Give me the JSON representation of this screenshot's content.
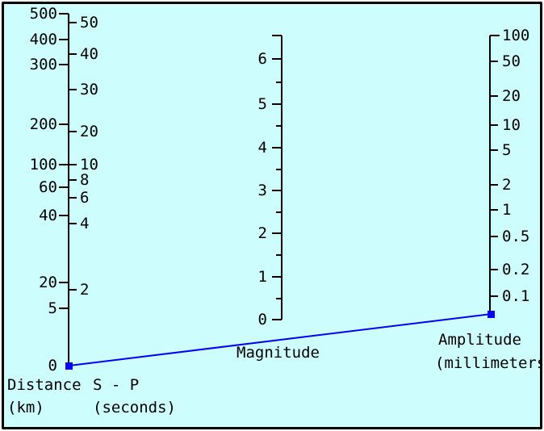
{
  "colors": {
    "background": "#cdfdfd",
    "axis": "#000000",
    "connector": "#0000ff"
  },
  "distance_axis": {
    "label_line1": "Distance",
    "label_line2": "(km)",
    "ticks": [
      "500",
      "400",
      "300",
      "200",
      "100",
      "60",
      "40",
      "20",
      "5",
      "0"
    ]
  },
  "sp_axis": {
    "label_line1": "S - P",
    "label_line2": "(seconds)",
    "ticks": [
      "50",
      "40",
      "30",
      "20",
      "10",
      "8",
      "6",
      "4",
      "2"
    ]
  },
  "magnitude_axis": {
    "label": "Magnitude",
    "ticks": [
      "6",
      "5",
      "4",
      "3",
      "2",
      "1",
      "0"
    ]
  },
  "amplitude_axis": {
    "label_line1": "Amplitude",
    "label_line2": "(millimeters",
    "ticks": [
      "100",
      "50",
      "20",
      "10",
      "5",
      "2",
      "1",
      "0.5",
      "0.2",
      "0.1"
    ]
  },
  "connector_line": {
    "distance_km": "0",
    "amplitude_mm": "0.05"
  }
}
